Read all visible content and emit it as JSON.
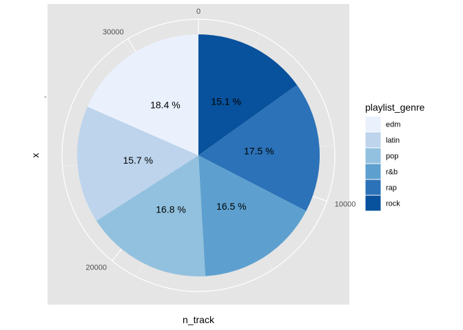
{
  "chart_data": {
    "type": "pie",
    "xlabel": "n_track",
    "ylabel": "x",
    "y_tick_label": "-",
    "radial_ticks": [
      "0",
      "10000",
      "20000",
      "30000"
    ],
    "radial_tick_values": [
      0,
      10000,
      20000,
      30000
    ],
    "total": 32833,
    "legend_title": "playlist_genre",
    "legend_position": "right",
    "slices": [
      {
        "category": "rock",
        "percent": 15.1,
        "label": "15.1 %",
        "color": "#08519c"
      },
      {
        "category": "rap",
        "percent": 17.5,
        "label": "17.5 %",
        "color": "#2b72b8"
      },
      {
        "category": "r&b",
        "percent": 16.5,
        "label": "16.5 %",
        "color": "#5da0cf"
      },
      {
        "category": "pop",
        "percent": 16.8,
        "label": "16.8 %",
        "color": "#92c1df"
      },
      {
        "category": "latin",
        "percent": 15.7,
        "label": "15.7 %",
        "color": "#bdd4ec"
      },
      {
        "category": "edm",
        "percent": 18.4,
        "label": "18.4 %",
        "color": "#eaf1fd"
      }
    ],
    "legend": [
      {
        "label": "edm",
        "color": "#eaf1fd"
      },
      {
        "label": "latin",
        "color": "#bdd4ec"
      },
      {
        "label": "pop",
        "color": "#92c1df"
      },
      {
        "label": "r&b",
        "color": "#5da0cf"
      },
      {
        "label": "rap",
        "color": "#2b72b8"
      },
      {
        "label": "rock",
        "color": "#08519c"
      }
    ],
    "panel_background": "#e5e5e5",
    "grid": true
  }
}
